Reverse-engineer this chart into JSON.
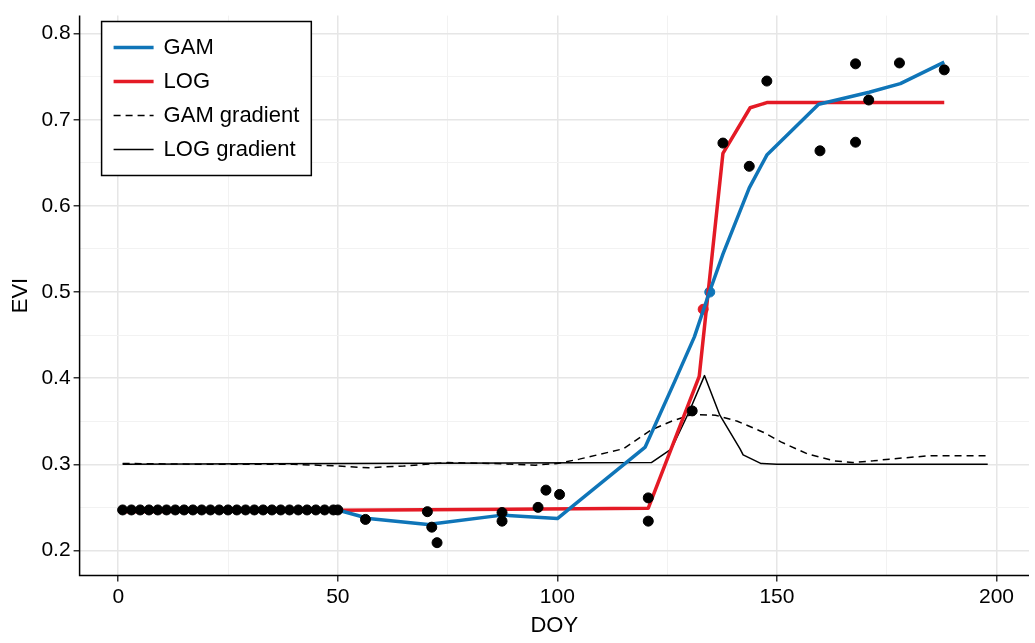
{
  "chart_data": {
    "type": "line",
    "xlabel": "DOY",
    "ylabel": "EVI",
    "xlim": [
      -8.8,
      207.4
    ],
    "ylim": [
      0.171,
      0.821
    ],
    "xticks": [
      0,
      {
        "value": 25,
        "label": null
      },
      50,
      {
        "value": 75,
        "label": null
      },
      100,
      {
        "value": 125,
        "label": null
      },
      150,
      {
        "value": 175,
        "label": null
      },
      200
    ],
    "yticks": [
      0.2,
      {
        "value": 0.25,
        "label": null
      },
      0.3,
      {
        "value": 0.35,
        "label": null
      },
      0.4,
      {
        "value": 0.45,
        "label": null
      },
      0.5,
      {
        "value": 0.55,
        "label": null
      },
      0.6,
      {
        "value": 0.65,
        "label": null
      },
      0.7,
      {
        "value": 0.75,
        "label": null
      },
      0.8
    ],
    "grid": true,
    "legend": "top left",
    "series": [
      {
        "type": "scatter",
        "marker": "circle",
        "color": "#000000",
        "x": [
          1,
          3,
          5,
          7,
          9,
          11,
          13,
          15,
          17,
          19,
          21,
          23,
          25,
          27,
          29,
          31,
          33,
          35,
          37,
          39,
          41,
          43,
          45,
          47,
          49,
          50,
          56.3,
          70.4,
          71.4,
          72.6,
          87.4,
          87.4,
          95.6,
          97.4,
          100.5,
          120.7,
          120.7,
          130.7,
          137.7,
          143.7,
          147.7,
          159.8,
          167.9,
          167.9,
          170.9,
          177.9,
          188.1
        ],
        "values": [
          0.247,
          0.247,
          0.247,
          0.247,
          0.247,
          0.247,
          0.247,
          0.247,
          0.247,
          0.247,
          0.247,
          0.247,
          0.247,
          0.247,
          0.247,
          0.247,
          0.247,
          0.247,
          0.247,
          0.247,
          0.247,
          0.247,
          0.247,
          0.247,
          0.247,
          0.247,
          0.236,
          0.245,
          0.227,
          0.209,
          0.244,
          0.234,
          0.25,
          0.27,
          0.265,
          0.261,
          0.234,
          0.362,
          0.673,
          0.646,
          0.745,
          0.664,
          0.674,
          0.765,
          0.723,
          0.766,
          0.758
        ]
      },
      {
        "name": "GAM",
        "color": "#0f75b8",
        "x": [
          1,
          50,
          57,
          70.5,
          87.4,
          100,
          120,
          126.7,
          131.2,
          134.7,
          137.7,
          143.7,
          147.7,
          159.5,
          171,
          178.1,
          188.1
        ],
        "values": [
          0.247,
          0.247,
          0.237,
          0.23,
          0.241,
          0.237,
          0.32,
          0.396,
          0.448,
          0.501,
          0.544,
          0.621,
          0.659,
          0.718,
          0.732,
          0.742,
          0.767
        ]
      },
      {
        "name": "LOG",
        "color": "#e41a25",
        "x": [
          1,
          120.7,
          132.3,
          137.7,
          143.9,
          147.7,
          188.1
        ],
        "values": [
          0.245,
          0.249,
          0.402,
          0.661,
          0.714,
          0.72,
          0.72
        ]
      },
      {
        "name": "GAM gradient",
        "color": "#000000",
        "line_style": "dashed",
        "x": [
          1,
          20,
          40,
          50,
          57,
          65,
          75,
          85,
          95,
          100,
          105,
          110,
          115,
          121.4,
          126,
          130.7,
          136,
          141,
          147,
          150.9,
          157,
          163,
          167.2,
          172,
          175.6,
          185,
          198
        ],
        "values": [
          0.301,
          0.3,
          0.3,
          0.298,
          0.296,
          0.298,
          0.302,
          0.301,
          0.299,
          0.301,
          0.306,
          0.312,
          0.318,
          0.34,
          0.35,
          0.358,
          0.357,
          0.35,
          0.337,
          0.326,
          0.312,
          0.304,
          0.302,
          0.304,
          0.306,
          0.31,
          0.31
        ]
      },
      {
        "name": "LOG gradient",
        "color": "#000000",
        "line_style": "solid",
        "x": [
          1,
          121.4,
          126,
          130,
          133.5,
          137,
          141.6,
          142.3,
          146.3,
          150,
          198
        ],
        "values": [
          0.3,
          0.302,
          0.318,
          0.361,
          0.403,
          0.357,
          0.318,
          0.311,
          0.301,
          0.3,
          0.3
        ]
      },
      {
        "type": "scatter",
        "marker": "circle",
        "color": "#0f75b8",
        "x": [
          134.7
        ],
        "values": [
          0.5
        ]
      },
      {
        "type": "scatter",
        "marker": "circle",
        "color": "#e41a25",
        "x": [
          133.2
        ],
        "values": [
          0.48
        ]
      }
    ]
  }
}
